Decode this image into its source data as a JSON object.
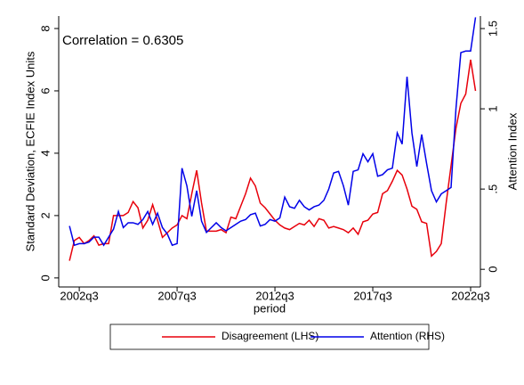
{
  "chart_data": {
    "type": "line",
    "annotation": "Correlation = 0.6305",
    "x_label": "period",
    "y_label": "Standard Deviation, ECFIE Index Units",
    "y2_label": "Attention Index",
    "x": [
      168,
      169,
      170,
      171,
      172,
      173,
      174,
      175,
      176,
      177,
      178,
      179,
      180,
      181,
      182,
      183,
      184,
      185,
      186,
      187,
      188,
      189,
      190,
      191,
      192,
      193,
      194,
      195,
      196,
      197,
      198,
      199,
      200,
      201,
      202,
      203,
      204,
      205,
      206,
      207,
      208,
      209,
      210,
      211,
      212,
      213,
      214,
      215,
      216,
      217,
      218,
      219,
      220,
      221,
      222,
      223,
      224,
      225,
      226,
      227,
      228,
      229,
      230,
      231,
      232,
      233,
      234,
      235,
      236,
      237,
      238,
      239,
      240,
      241,
      242,
      243,
      244,
      245,
      246,
      247,
      248,
      249,
      250,
      251
    ],
    "xlim": [
      165.8,
      252
    ],
    "xticks": [
      {
        "value": 170,
        "label": "2002q3"
      },
      {
        "value": 190,
        "label": "2007q3"
      },
      {
        "value": 210,
        "label": "2012q3"
      },
      {
        "value": 230,
        "label": "2017q3"
      },
      {
        "value": 250,
        "label": "2022q3"
      }
    ],
    "ylim": [
      -0.29,
      8.4
    ],
    "yticks": [
      0,
      2,
      4,
      6,
      8
    ],
    "y2lim": [
      -0.11,
      1.578
    ],
    "y2ticks": [
      0,
      {
        "value": 0.5,
        "label": ".5"
      },
      1,
      1.5
    ],
    "legend": "bottom",
    "series": [
      {
        "name": "Disagreement (LHS)",
        "color": "#e8000b",
        "values": [
          0.55,
          1.2,
          1.3,
          1.1,
          1.2,
          1.35,
          1.05,
          1.1,
          1.1,
          2.0,
          2.0,
          2.0,
          2.1,
          2.45,
          2.25,
          1.6,
          1.85,
          2.35,
          1.85,
          1.3,
          1.45,
          1.6,
          1.7,
          2.0,
          1.9,
          2.7,
          3.45,
          2.4,
          1.5,
          1.5,
          1.5,
          1.55,
          1.45,
          1.95,
          1.9,
          2.3,
          2.7,
          3.2,
          2.95,
          2.4,
          2.25,
          2.05,
          1.85,
          1.7,
          1.6,
          1.55,
          1.65,
          1.75,
          1.7,
          1.85,
          1.65,
          1.9,
          1.85,
          1.6,
          1.65,
          1.6,
          1.55,
          1.45,
          1.6,
          1.4,
          1.8,
          1.85,
          2.05,
          2.1,
          2.7,
          2.8,
          3.1,
          3.45,
          3.3,
          2.85,
          2.3,
          2.2,
          1.8,
          1.75,
          0.7,
          0.85,
          1.1,
          2.4,
          3.6,
          4.8,
          5.6,
          5.9,
          7.0,
          6.0
        ]
      },
      {
        "name": "Attention (RHS)",
        "color": "#0000e8",
        "axis": "y2",
        "values": [
          0.27,
          0.15,
          0.16,
          0.16,
          0.17,
          0.2,
          0.2,
          0.15,
          0.2,
          0.25,
          0.36,
          0.26,
          0.29,
          0.29,
          0.28,
          0.31,
          0.36,
          0.28,
          0.35,
          0.26,
          0.22,
          0.15,
          0.16,
          0.63,
          0.52,
          0.33,
          0.49,
          0.3,
          0.23,
          0.26,
          0.29,
          0.26,
          0.24,
          0.26,
          0.28,
          0.3,
          0.31,
          0.34,
          0.35,
          0.27,
          0.28,
          0.31,
          0.3,
          0.32,
          0.45,
          0.39,
          0.38,
          0.43,
          0.39,
          0.37,
          0.39,
          0.4,
          0.43,
          0.5,
          0.6,
          0.61,
          0.52,
          0.4,
          0.61,
          0.62,
          0.72,
          0.67,
          0.72,
          0.58,
          0.59,
          0.62,
          0.63,
          0.85,
          0.78,
          1.2,
          0.85,
          0.64,
          0.84,
          0.66,
          0.49,
          0.42,
          0.47,
          0.49,
          0.51,
          1.0,
          1.35,
          1.36,
          1.36,
          1.57
        ]
      }
    ]
  }
}
